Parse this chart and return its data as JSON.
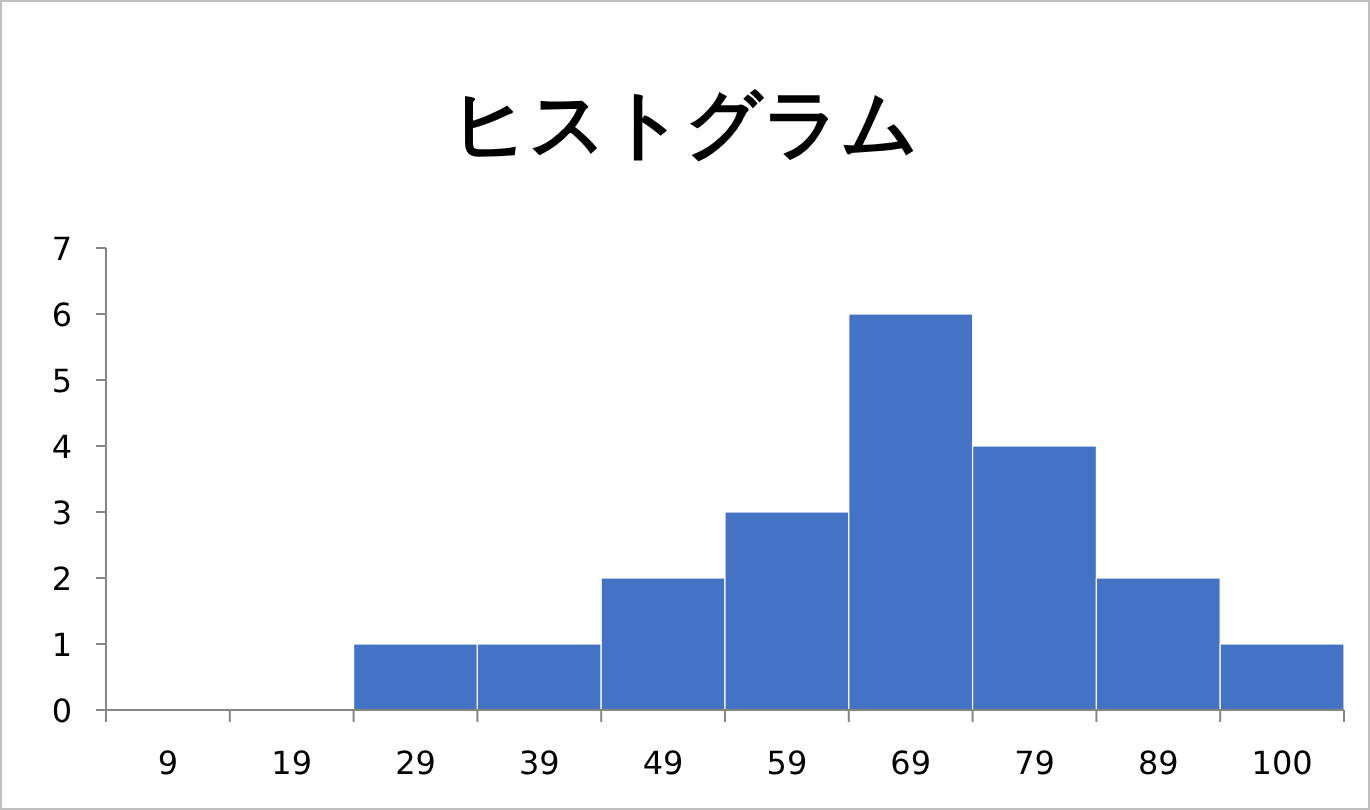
{
  "chart_data": {
    "type": "bar",
    "title": "ヒストグラム",
    "categories": [
      "9",
      "19",
      "29",
      "39",
      "49",
      "59",
      "69",
      "79",
      "89",
      "100"
    ],
    "values": [
      0,
      0,
      1,
      1,
      2,
      3,
      6,
      4,
      2,
      1
    ],
    "color": "#4472c4",
    "ylim": [
      0,
      7
    ],
    "yticks": [
      0,
      1,
      2,
      3,
      4,
      5,
      6,
      7
    ],
    "grid": false
  }
}
